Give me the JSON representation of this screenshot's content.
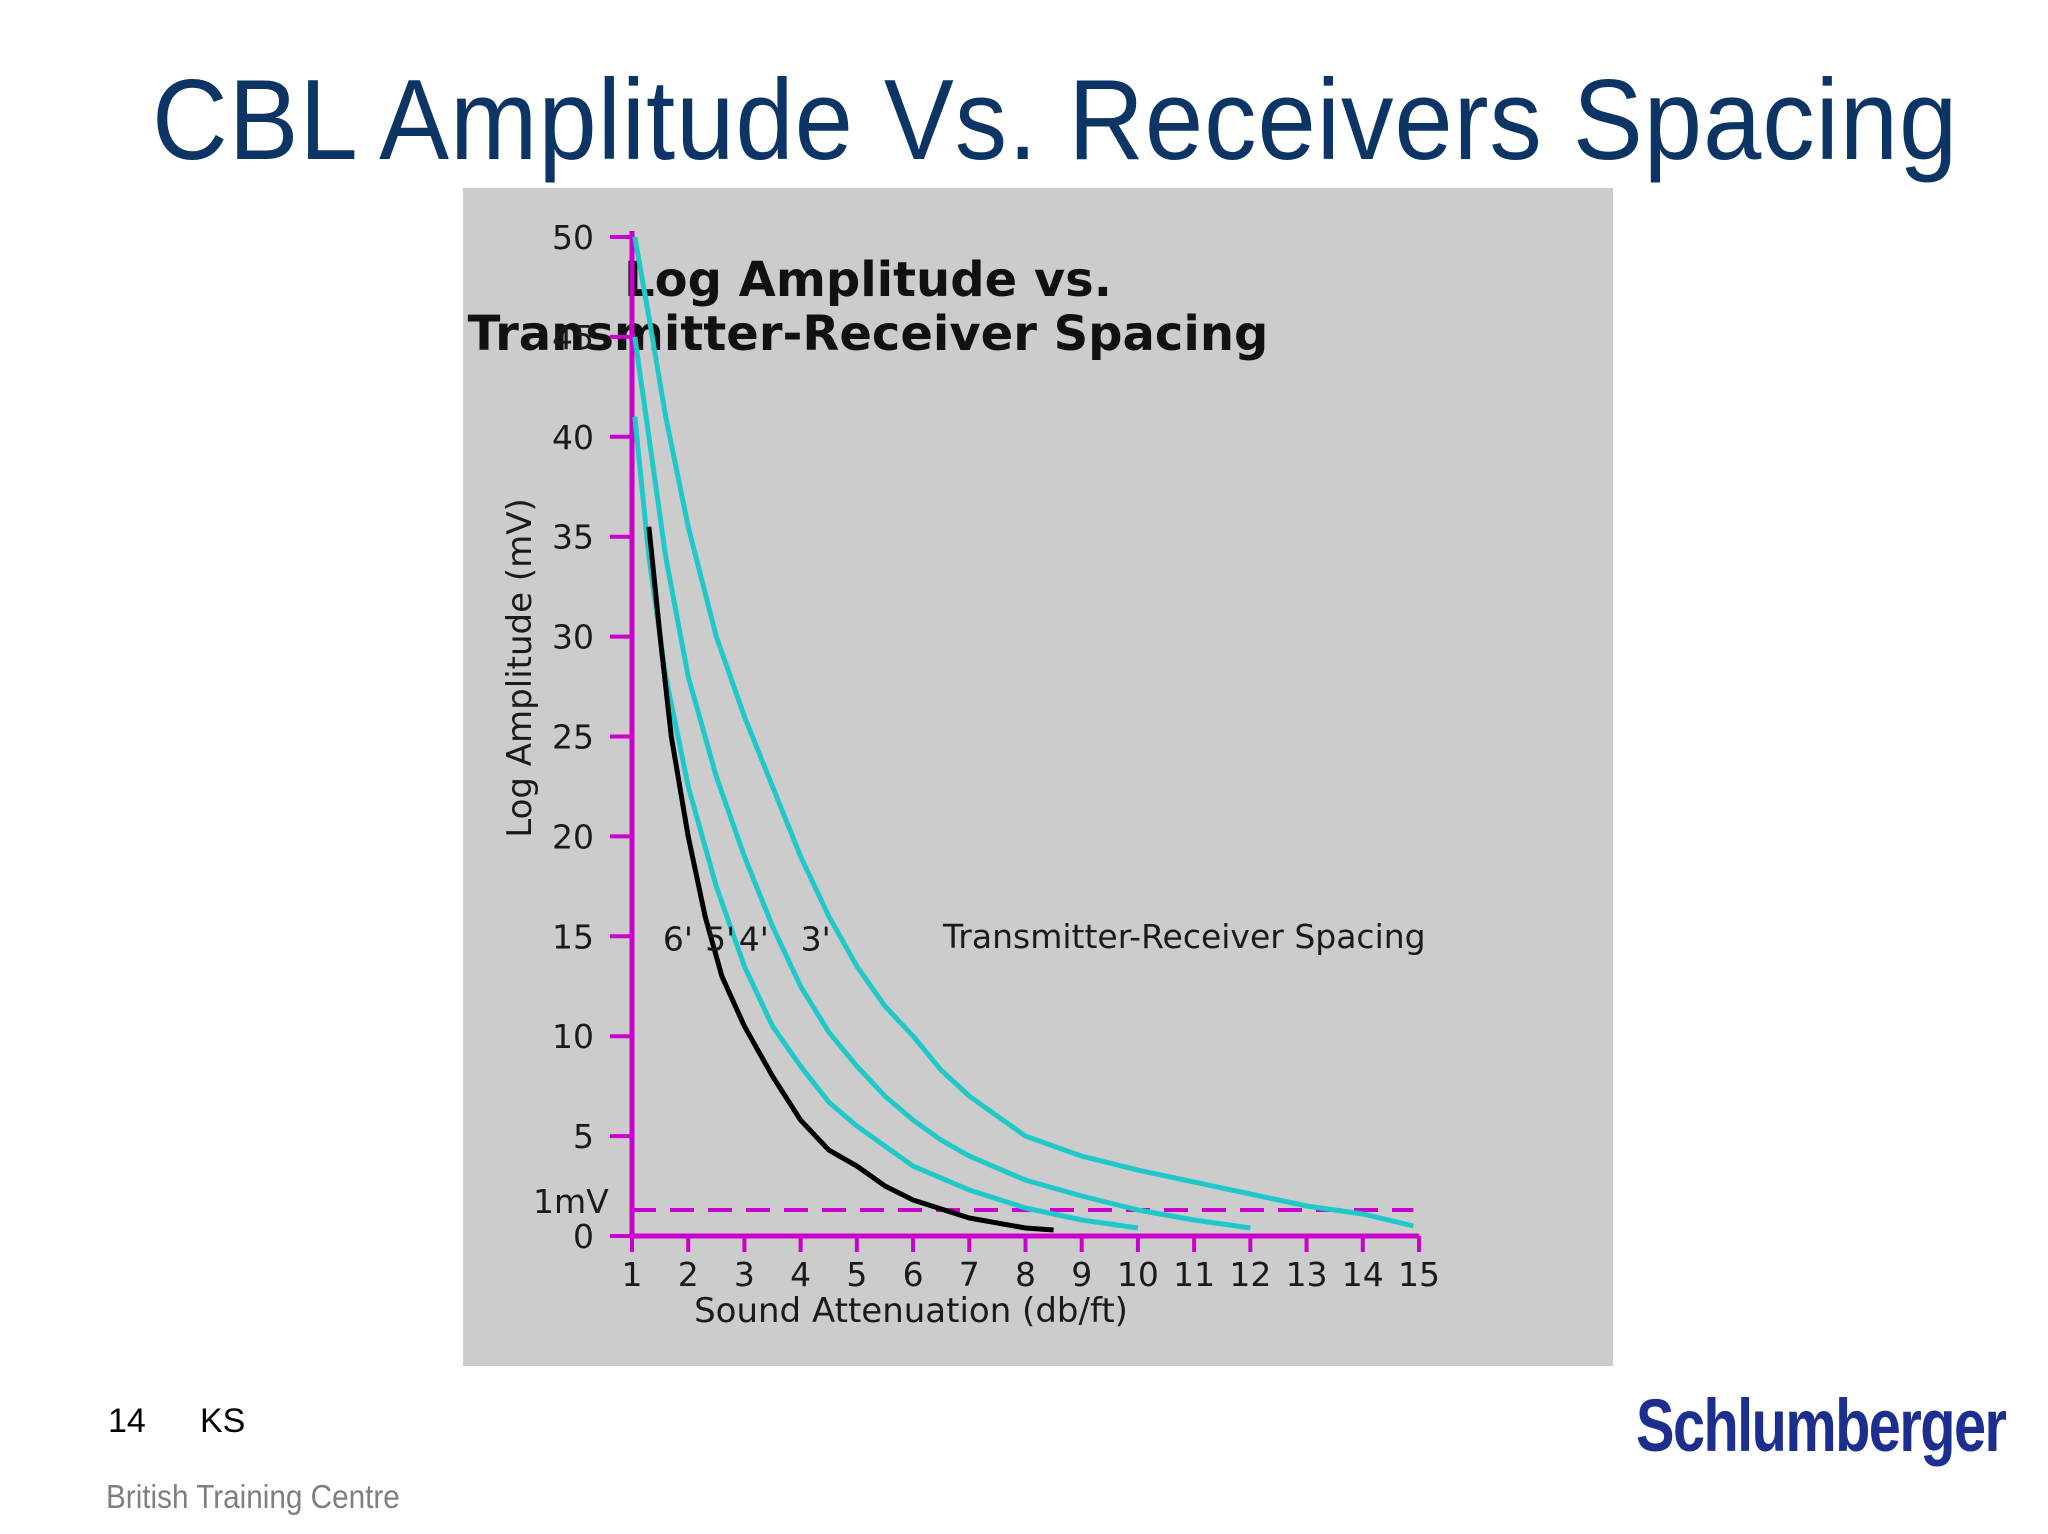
{
  "slide": {
    "title": "CBL Amplitude Vs. Receivers Spacing",
    "page_number": "14",
    "initials": "KS",
    "organization": "British Training Centre",
    "logo_text": "Schlumberger"
  },
  "colors": {
    "title": "#0c3566",
    "panel": "#cccccc",
    "axis": "#cc00cc",
    "series_cyan": "#1fc9c9",
    "series_black": "#000000",
    "logo": "#1d2f8e"
  },
  "chart_data": {
    "type": "line",
    "title_line1": "Log Amplitude vs.",
    "title_line2": "Transmitter-Receiver Spacing",
    "xlabel": "Sound Attenuation (db/ft)",
    "ylabel": "Log Amplitude (mV)",
    "xlim": [
      1,
      15
    ],
    "ylim": [
      0,
      50
    ],
    "x_ticks": [
      1,
      2,
      3,
      4,
      5,
      6,
      7,
      8,
      9,
      10,
      11,
      12,
      13,
      14,
      15
    ],
    "y_ticks": [
      0,
      5,
      10,
      15,
      20,
      25,
      30,
      35,
      40,
      45,
      50
    ],
    "y_tick_labels": [
      "0",
      "5",
      "10",
      "15",
      "20",
      "25",
      "30",
      "35",
      "40",
      "45",
      "50"
    ],
    "x_tick_labels": [
      "1",
      "2",
      "3",
      "4",
      "5",
      "6",
      "7",
      "8",
      "9",
      "10",
      "11",
      "12",
      "13",
      "14",
      "15"
    ],
    "reference_line": {
      "y": 1.3,
      "label": "1mV"
    },
    "annotation": "Transmitter-Receiver Spacing",
    "series": [
      {
        "name": "3'",
        "color": "#1fc9c9",
        "x": [
          1.05,
          1.3,
          1.6,
          2.0,
          2.5,
          3.0,
          3.5,
          4.0,
          4.5,
          5.0,
          5.5,
          6.0,
          6.5,
          7.0,
          7.5,
          8.0,
          9.0,
          10.0,
          11.0,
          12.0,
          13.0,
          14.0,
          14.9
        ],
        "y": [
          50,
          46,
          41,
          35.5,
          30,
          26,
          22.5,
          19,
          16,
          13.5,
          11.5,
          10,
          8.3,
          7,
          6,
          5,
          4,
          3.3,
          2.7,
          2.1,
          1.5,
          1.1,
          0.5
        ]
      },
      {
        "name": "4'",
        "color": "#1fc9c9",
        "x": [
          1.05,
          1.3,
          1.6,
          2.0,
          2.5,
          3.0,
          3.5,
          4.0,
          4.5,
          5.0,
          5.5,
          6.0,
          6.5,
          7.0,
          8.0,
          9.0,
          10.0,
          11.0,
          12.0
        ],
        "y": [
          45,
          40,
          34,
          28,
          23,
          19,
          15.5,
          12.5,
          10.2,
          8.5,
          7,
          5.8,
          4.8,
          4,
          2.8,
          2,
          1.3,
          0.8,
          0.4
        ]
      },
      {
        "name": "5'",
        "color": "#1fc9c9",
        "x": [
          1.05,
          1.3,
          1.6,
          2.0,
          2.5,
          3.0,
          3.5,
          4.0,
          4.5,
          5.0,
          6.0,
          7.0,
          8.0,
          9.0,
          10.0
        ],
        "y": [
          41,
          34,
          28,
          22.5,
          17.5,
          13.5,
          10.5,
          8.5,
          6.7,
          5.5,
          3.5,
          2.3,
          1.4,
          0.8,
          0.4
        ]
      },
      {
        "name": "6'",
        "color": "#000000",
        "x": [
          1.3,
          1.5,
          1.7,
          2.0,
          2.3,
          2.6,
          3.0,
          3.5,
          4.0,
          4.5,
          5.0,
          5.5,
          6.0,
          7.0,
          8.0,
          8.5
        ],
        "y": [
          35.5,
          30,
          25,
          20,
          16,
          13,
          10.5,
          8,
          5.8,
          4.3,
          3.5,
          2.5,
          1.8,
          0.9,
          0.4,
          0.3
        ]
      }
    ]
  }
}
